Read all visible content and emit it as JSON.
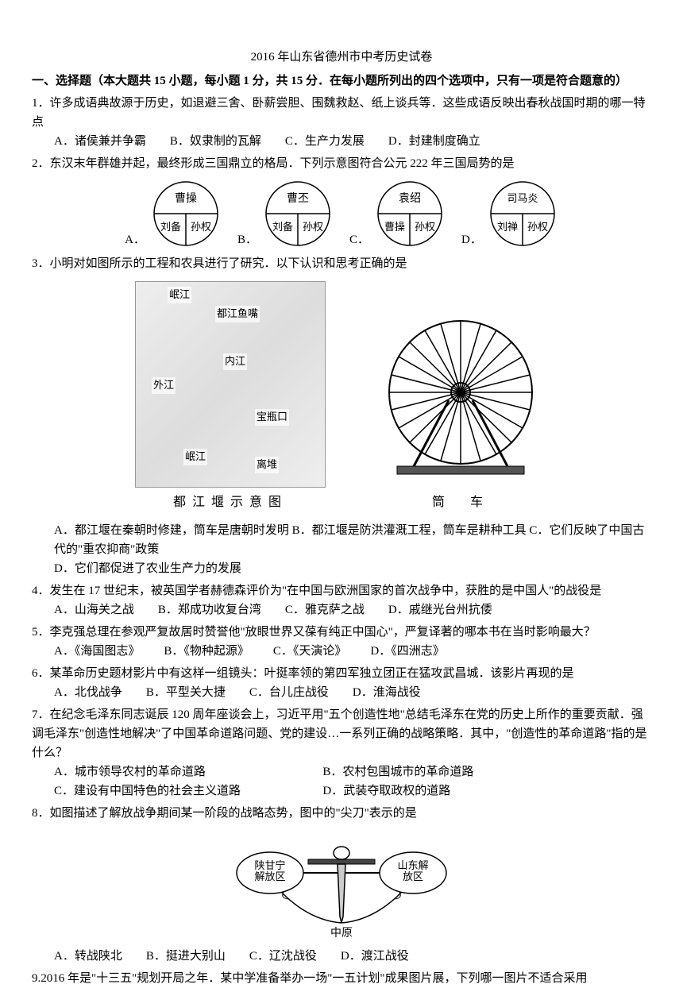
{
  "title": "2016 年山东省德州市中考历史试卷",
  "section1_heading": "一、选择题（本大题共 15 小题，每小题 1 分，共 15 分．在每小题所列出的四个选项中，只有一项是符合题意的）",
  "q1": {
    "text": "1．许多成语典故源于历史，如退避三舍、卧薪尝胆、围魏救赵、纸上谈兵等．这些成语反映出春秋战国时期的哪一特点",
    "A": "A．诸侯兼并争霸",
    "B": "B．奴隶制的瓦解",
    "C": "C．生产力发展",
    "D": "D．封建制度确立"
  },
  "q2": {
    "text": "2．东汉末年群雄并起，最终形成三国鼎立的格局．下列示意图符合公元 222 年三国局势的是",
    "pies": [
      {
        "top": "曹操",
        "left": "刘备",
        "right": "孙权",
        "label": "A．"
      },
      {
        "top": "曹丕",
        "left": "刘备",
        "right": "孙权",
        "label": "B．"
      },
      {
        "top": "袁绍",
        "left": "曹操",
        "right": "孙权",
        "label": "C．"
      },
      {
        "top": "司马炎",
        "left": "刘禅",
        "right": "孙权",
        "label": "D．"
      }
    ]
  },
  "q3": {
    "text": "3．小明对如图所示的工程和农具进行了研究．以下认识和思考正确的是",
    "map_labels": {
      "l1": "岷江",
      "l2": "都江鱼嘴",
      "l3": "内江",
      "l4": "外江",
      "l5": "宝瓶口",
      "l6": "岷江",
      "l7": "离堆"
    },
    "caption1": "都江堰示意图",
    "caption2": "筒　车",
    "A": "A．都江堰在秦朝时修建，筒车是唐朝时发明",
    "B": "B．都江堰是防洪灌溉工程，筒车是耕种工具",
    "C": "C．它们反映了中国古代的\"重农抑商\"政策",
    "D": "D．它们都促进了农业生产力的发展"
  },
  "q4": {
    "text": "4．发生在 17 世纪末，被英国学者赫德森评价为\"在中国与欧洲国家的首次战争中，获胜的是中国人\"的战役是",
    "A": "A．山海关之战",
    "B": "B．郑成功收复台湾",
    "C": "C．雅克萨之战",
    "D": "D．戚继光台州抗倭"
  },
  "q5": {
    "text": "5．李克强总理在参观严复故居时赞誉他\"放眼世界又葆有纯正中国心\"，严复译著的哪本书在当时影响最大？",
    "A": "A．《海国图志》",
    "B": "B．《物种起源》",
    "C": "C．《天演论》",
    "D": "D．《四洲志》"
  },
  "q6": {
    "text": "6．某革命历史题材影片中有这样一组镜头：叶挺率领的第四军独立团正在猛攻武昌城．该影片再现的是",
    "A": "A．北伐战争",
    "B": "B．平型关大捷",
    "C": "C．台儿庄战役",
    "D": "D．淮海战役"
  },
  "q7": {
    "text": "7．在纪念毛泽东同志诞辰 120 周年座谈会上，习近平用\"五个创造性地\"总结毛泽东在党的历史上所作的重要贡献．强调毛泽东\"创造性地解决\"了中国革命道路问题、党的建设…一系列正确的战略策略．其中，\"创造性的革命道路\"指的是什么？",
    "A": "A．城市领导农村的革命道路",
    "B": "B．农村包围城市的革命道路",
    "C": "C．建设有中国特色的社会主义道路",
    "D": "D．武装夺取政权的道路"
  },
  "q8": {
    "text": "8．如图描述了解放战争期间某一阶段的战略态势，图中的\"尖刀\"表示的是",
    "left_region": "陕甘宁解放区",
    "right_region": "山东解放区",
    "center_label": "中原",
    "A": "A．转战陕北",
    "B": "B．挺进大别山",
    "C": "C．辽沈战役",
    "D": "D．渡江战役"
  },
  "q9": {
    "text": "9.2016 年是\"十三五\"规划开局之年．某中学准备举办一场\"一五计划\"成果图片展，下列哪一图片不适合采用"
  }
}
